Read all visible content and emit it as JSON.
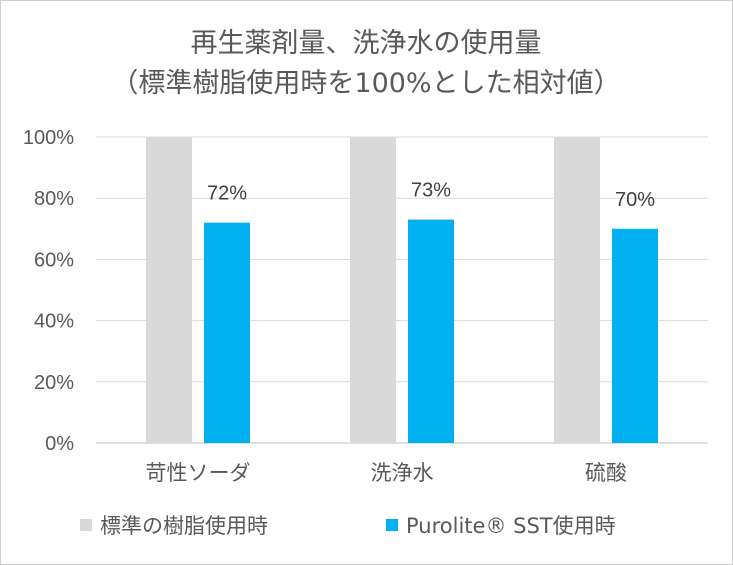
{
  "chart_data": {
    "type": "bar",
    "title": "再生薬剤量、洗浄水の使用量",
    "subtitle": "（標準樹脂使用時を100%とした相対値）",
    "categories": [
      "苛性ソーダ",
      "洗浄水",
      "硫酸"
    ],
    "series": [
      {
        "name": "標準の樹脂使用時",
        "values": [
          100,
          100,
          100
        ],
        "color": "#d9d9d9",
        "show_labels": false
      },
      {
        "name": "Purolite® SST使用時",
        "values": [
          72,
          73,
          70
        ],
        "color": "#00b0f0",
        "show_labels": true
      }
    ],
    "data_labels": [
      "72%",
      "73%",
      "70%"
    ],
    "ylim": [
      0,
      100
    ],
    "yticks": [
      0,
      20,
      40,
      60,
      80,
      100
    ],
    "ytick_labels": [
      "0%",
      "20%",
      "40%",
      "60%",
      "80%",
      "100%"
    ],
    "grid": true,
    "legend_position": "bottom"
  }
}
